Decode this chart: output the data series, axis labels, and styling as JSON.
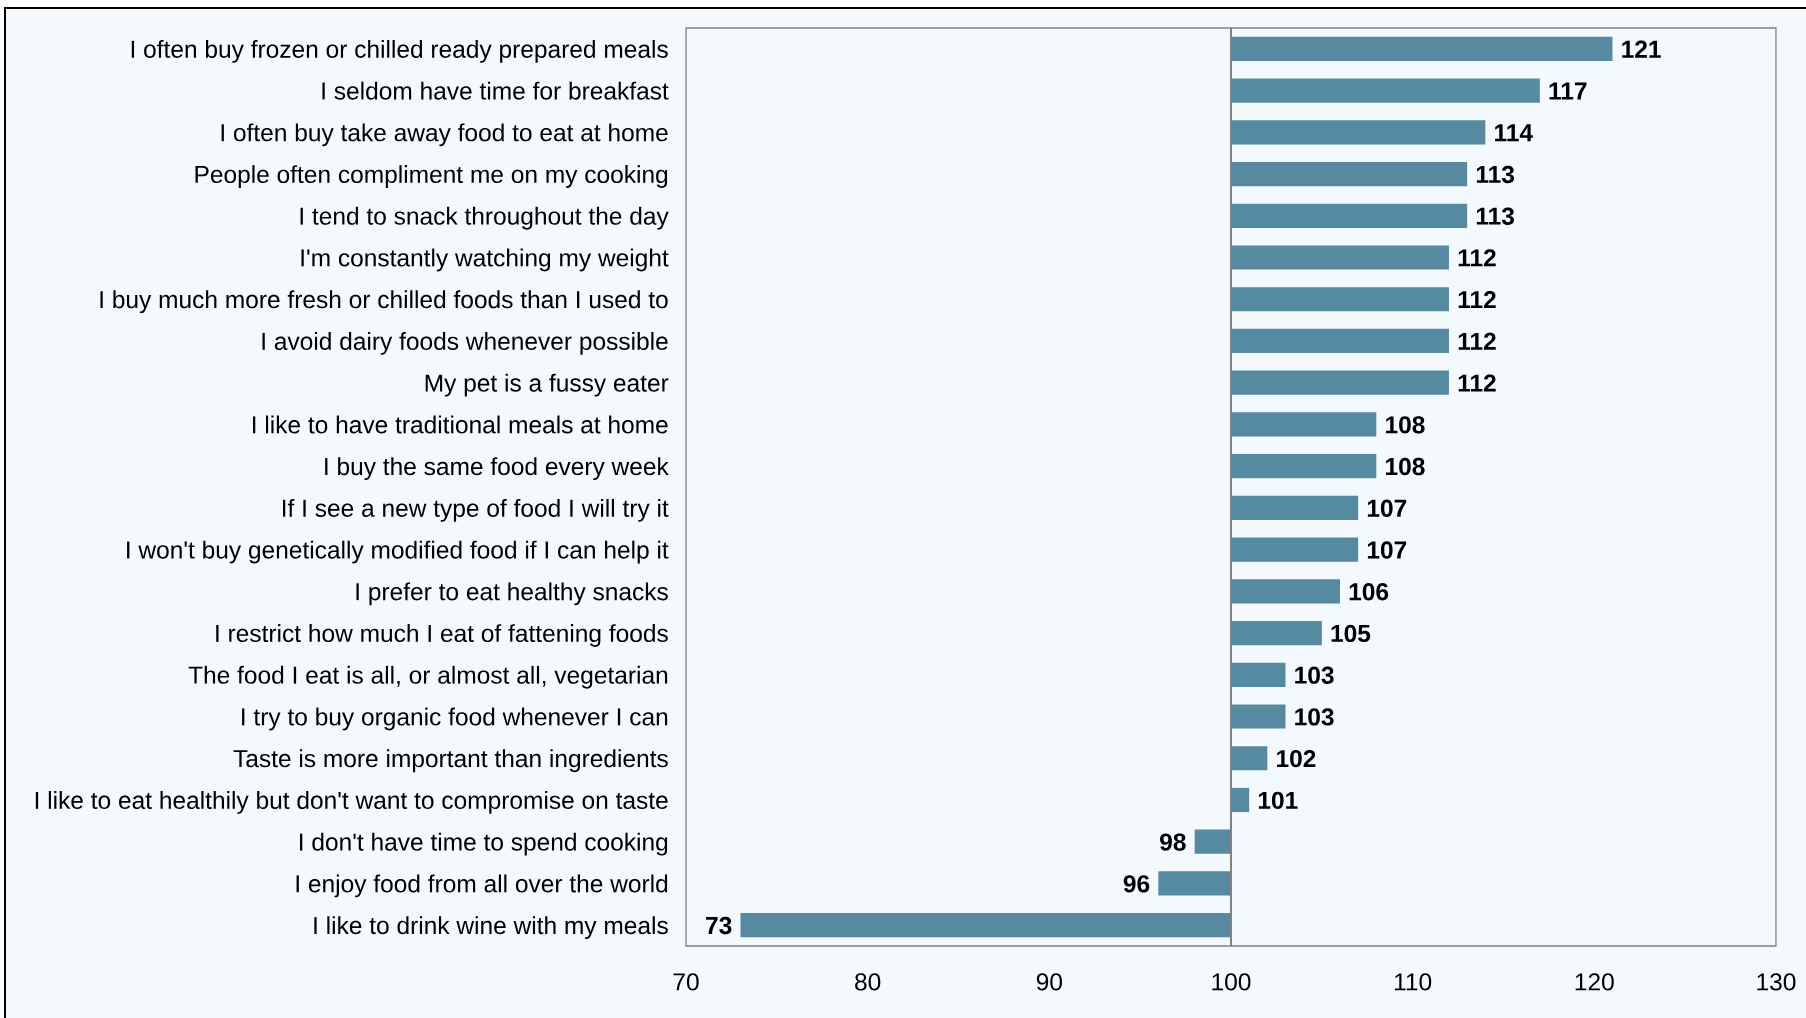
{
  "chart_data": {
    "type": "bar",
    "orientation": "horizontal",
    "categories": [
      "I often buy frozen or chilled ready prepared meals",
      "I seldom have time for breakfast",
      "I often buy take away food to eat at home",
      "People often compliment me on my cooking",
      "I tend to snack throughout the day",
      "I'm constantly watching my weight",
      "I buy much more fresh or chilled foods than I used to",
      "I avoid dairy foods whenever possible",
      "My pet is a fussy eater",
      "I like to have traditional meals at home",
      "I buy the same food every week",
      "If I see a new type of food I will try it",
      "I won't buy genetically modified food if I can help it",
      "I prefer to eat healthy snacks",
      "I restrict how much I eat of fattening foods",
      "The food I eat is all, or almost all, vegetarian",
      "I try to buy organic food whenever I can",
      "Taste is more important than ingredients",
      "I like to eat healthily but don't want to compromise on taste",
      "I don't have time to spend cooking",
      "I enjoy food from all over the world",
      "I like to drink wine with my meals"
    ],
    "base": [
      100,
      100,
      100,
      100,
      100,
      100,
      100,
      100,
      100,
      100,
      100,
      100,
      100,
      100,
      100,
      100,
      100,
      100,
      100,
      100,
      100,
      100
    ],
    "values": [
      21,
      17,
      14,
      13,
      13,
      12,
      12,
      12,
      12,
      8,
      8,
      7,
      7,
      6,
      5,
      3,
      3,
      2,
      1,
      -2,
      -4,
      -27
    ],
    "value_labels": [
      "121",
      "117",
      "114",
      "113",
      "113",
      "112",
      "112",
      "112",
      "112",
      "108",
      "108",
      "107",
      "107",
      "106",
      "105",
      "103",
      "103",
      "102",
      "101",
      "98",
      "96",
      "73"
    ],
    "color": "#568aa0",
    "xlim": [
      70,
      130
    ],
    "xticks": [
      70,
      80,
      90,
      100,
      110,
      120,
      130
    ],
    "ref_lines": [
      {
        "axis": "x",
        "value": 100,
        "color": "#808080"
      }
    ]
  }
}
